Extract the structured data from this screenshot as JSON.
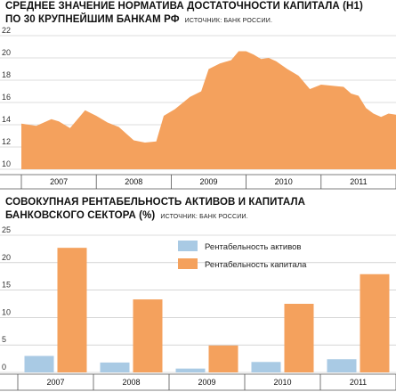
{
  "chart_data": [
    {
      "type": "area",
      "title": "СРЕДНЕЕ ЗНАЧЕНИЕ НОРМАТИВА ДОСТАТОЧНОСТИ КАПИТАЛА (Н1)",
      "title_line2": "ПО 30 КРУПНЕЙШИМ БАНКАМ РФ",
      "source": "ИСТОЧНИК: БАНК РОССИИ.",
      "categories": [
        "2007",
        "2008",
        "2009",
        "2010",
        "2011"
      ],
      "ylim": [
        10,
        22
      ],
      "yticks": [
        "10",
        "12",
        "14",
        "16",
        "18",
        "20",
        "22"
      ],
      "grid": true,
      "color": "#f4a15d",
      "x": [
        0,
        0.04,
        0.08,
        0.1,
        0.13,
        0.17,
        0.2,
        0.23,
        0.26,
        0.3,
        0.33,
        0.36,
        0.38,
        0.41,
        0.45,
        0.48,
        0.5,
        0.53,
        0.56,
        0.58,
        0.6,
        0.62,
        0.64,
        0.66,
        0.68,
        0.71,
        0.74,
        0.77,
        0.8,
        0.83,
        0.86,
        0.88,
        0.9,
        0.92,
        0.94,
        0.96,
        0.98,
        1.0
      ],
      "values": [
        14.1,
        13.9,
        14.5,
        14.3,
        13.7,
        15.3,
        14.8,
        14.2,
        13.8,
        12.6,
        12.4,
        12.5,
        14.8,
        15.4,
        16.5,
        17.0,
        19.0,
        19.5,
        19.8,
        20.6,
        20.6,
        20.3,
        19.9,
        20.0,
        19.7,
        19.0,
        18.4,
        17.2,
        17.6,
        17.5,
        17.4,
        16.8,
        16.6,
        15.5,
        15.0,
        14.7,
        15.0,
        14.9
      ]
    },
    {
      "type": "bar",
      "title": "СОВОКУПНАЯ РЕНТАБЕЛЬНОСТЬ АКТИВОВ И КАПИТАЛА",
      "title_line2": "БАНКОВСКОГО СЕКТОРА (%)",
      "source": "ИСТОЧНИК: БАНК РОССИИ.",
      "categories": [
        "2007",
        "2008",
        "2009",
        "2010",
        "2011"
      ],
      "ylim": [
        0,
        25
      ],
      "yticks": [
        "0",
        "5",
        "10",
        "15",
        "20",
        "25"
      ],
      "grid": true,
      "legend_position": "top-right",
      "series": [
        {
          "name": "Рентабельность активов",
          "color": "#a9cae4",
          "values": [
            3.0,
            1.8,
            0.7,
            1.9,
            2.4
          ]
        },
        {
          "name": "Рентабельность капитала",
          "color": "#f4a15d",
          "values": [
            22.7,
            13.3,
            4.9,
            12.5,
            17.9
          ]
        }
      ]
    }
  ]
}
